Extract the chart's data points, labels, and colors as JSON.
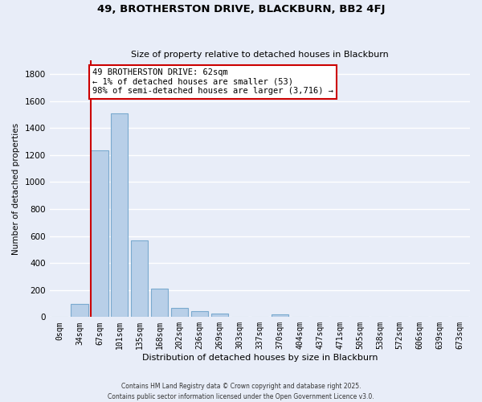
{
  "title": "49, BROTHERSTON DRIVE, BLACKBURN, BB2 4FJ",
  "subtitle": "Size of property relative to detached houses in Blackburn",
  "xlabel": "Distribution of detached houses by size in Blackburn",
  "ylabel": "Number of detached properties",
  "bar_labels": [
    "0sqm",
    "34sqm",
    "67sqm",
    "101sqm",
    "135sqm",
    "168sqm",
    "202sqm",
    "236sqm",
    "269sqm",
    "303sqm",
    "337sqm",
    "370sqm",
    "404sqm",
    "437sqm",
    "471sqm",
    "505sqm",
    "538sqm",
    "572sqm",
    "606sqm",
    "639sqm",
    "673sqm"
  ],
  "bar_values": [
    0,
    95,
    1235,
    1510,
    565,
    210,
    65,
    45,
    25,
    0,
    0,
    20,
    0,
    0,
    0,
    0,
    0,
    0,
    0,
    0,
    0
  ],
  "bar_color": "#b8cfe8",
  "bar_edge_color": "#7aaacf",
  "ylim": [
    0,
    1900
  ],
  "yticks": [
    0,
    200,
    400,
    600,
    800,
    1000,
    1200,
    1400,
    1600,
    1800
  ],
  "marker_color": "#cc0000",
  "annotation_title": "49 BROTHERSTON DRIVE: 62sqm",
  "annotation_line1": "← 1% of detached houses are smaller (53)",
  "annotation_line2": "98% of semi-detached houses are larger (3,716) →",
  "annotation_box_color": "#ffffff",
  "annotation_box_edge": "#cc0000",
  "background_color": "#e8edf8",
  "grid_color": "#ffffff",
  "footer1": "Contains HM Land Registry data © Crown copyright and database right 2025.",
  "footer2": "Contains public sector information licensed under the Open Government Licence v3.0."
}
